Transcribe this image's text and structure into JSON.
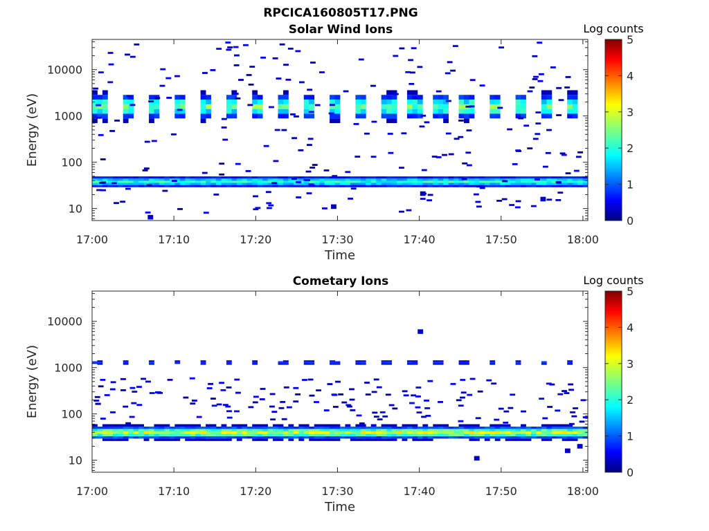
{
  "figure_title": "RPCICA160805T17.PNG",
  "colorbar_title": "Log counts",
  "chart_data": [
    {
      "type": "heatmap",
      "title": "Solar Wind Ions",
      "xlabel": "Time",
      "ylabel": "Energy (eV)",
      "x_ticks": [
        "17:00",
        "17:10",
        "17:20",
        "17:30",
        "17:40",
        "17:50",
        "18:00"
      ],
      "x_range_minutes": [
        0,
        60.6
      ],
      "y_scale": "log",
      "ylim": [
        5.5,
        45000
      ],
      "y_ticks": [
        10,
        100,
        1000,
        10000
      ],
      "y_tick_labels": [
        "10",
        "100",
        "1000",
        "10000"
      ],
      "colorbar": {
        "title": "Log counts",
        "range": [
          0,
          5
        ],
        "ticks": [
          "0",
          "1",
          "2",
          "3",
          "4",
          "5"
        ],
        "colormap": "jet"
      },
      "bands": [
        {
          "label": "low-energy band",
          "e_min": 26,
          "e_max": 55,
          "peak_log_counts": 2.2,
          "coverage": "continuous"
        },
        {
          "label": "solar wind band",
          "e_min": 700,
          "e_max": 3600,
          "peak_log_counts": 2.6,
          "coverage": "pulsed, ~3 min period"
        }
      ],
      "scatter_energy_range": [
        8,
        40000
      ],
      "isolated_points": [
        {
          "t": 6.8,
          "e": 6.5,
          "v": 0.4
        },
        {
          "t": 29.2,
          "e": 11,
          "v": 0.3
        },
        {
          "t": 54.8,
          "e": 16,
          "v": 0.5
        },
        {
          "t": 40.1,
          "e": 21,
          "v": 0.3
        }
      ],
      "grid": false
    },
    {
      "type": "heatmap",
      "title": "Cometary Ions",
      "xlabel": "Time",
      "ylabel": "Energy (eV)",
      "x_ticks": [
        "17:00",
        "17:10",
        "17:20",
        "17:30",
        "17:40",
        "17:50",
        "18:00"
      ],
      "x_range_minutes": [
        0,
        60.6
      ],
      "y_scale": "log",
      "ylim": [
        5.5,
        45000
      ],
      "y_ticks": [
        10,
        100,
        1000,
        10000
      ],
      "y_tick_labels": [
        "10",
        "100",
        "1000",
        "10000"
      ],
      "colorbar": {
        "title": "Log counts",
        "range": [
          0,
          5
        ],
        "ticks": [
          "0",
          "1",
          "2",
          "3",
          "4",
          "5"
        ],
        "colormap": "jet"
      },
      "bands": [
        {
          "label": "cometary ion band",
          "e_min": 26,
          "e_max": 60,
          "peak_log_counts": 3.0,
          "coverage": "continuous"
        },
        {
          "label": "high-energy patches",
          "e_min": 1100,
          "e_max": 1500,
          "peak_log_counts": 0.9,
          "coverage": "sparse, ~3 min period"
        }
      ],
      "scatter_energy_range": [
        60,
        600
      ],
      "isolated_points": [
        {
          "t": 46.7,
          "e": 11,
          "v": 0.3
        },
        {
          "t": 57.8,
          "e": 16,
          "v": 0.4
        },
        {
          "t": 59.3,
          "e": 20,
          "v": 0.3
        },
        {
          "t": 39.8,
          "e": 6000,
          "v": 0.4
        }
      ],
      "grid": false
    }
  ]
}
